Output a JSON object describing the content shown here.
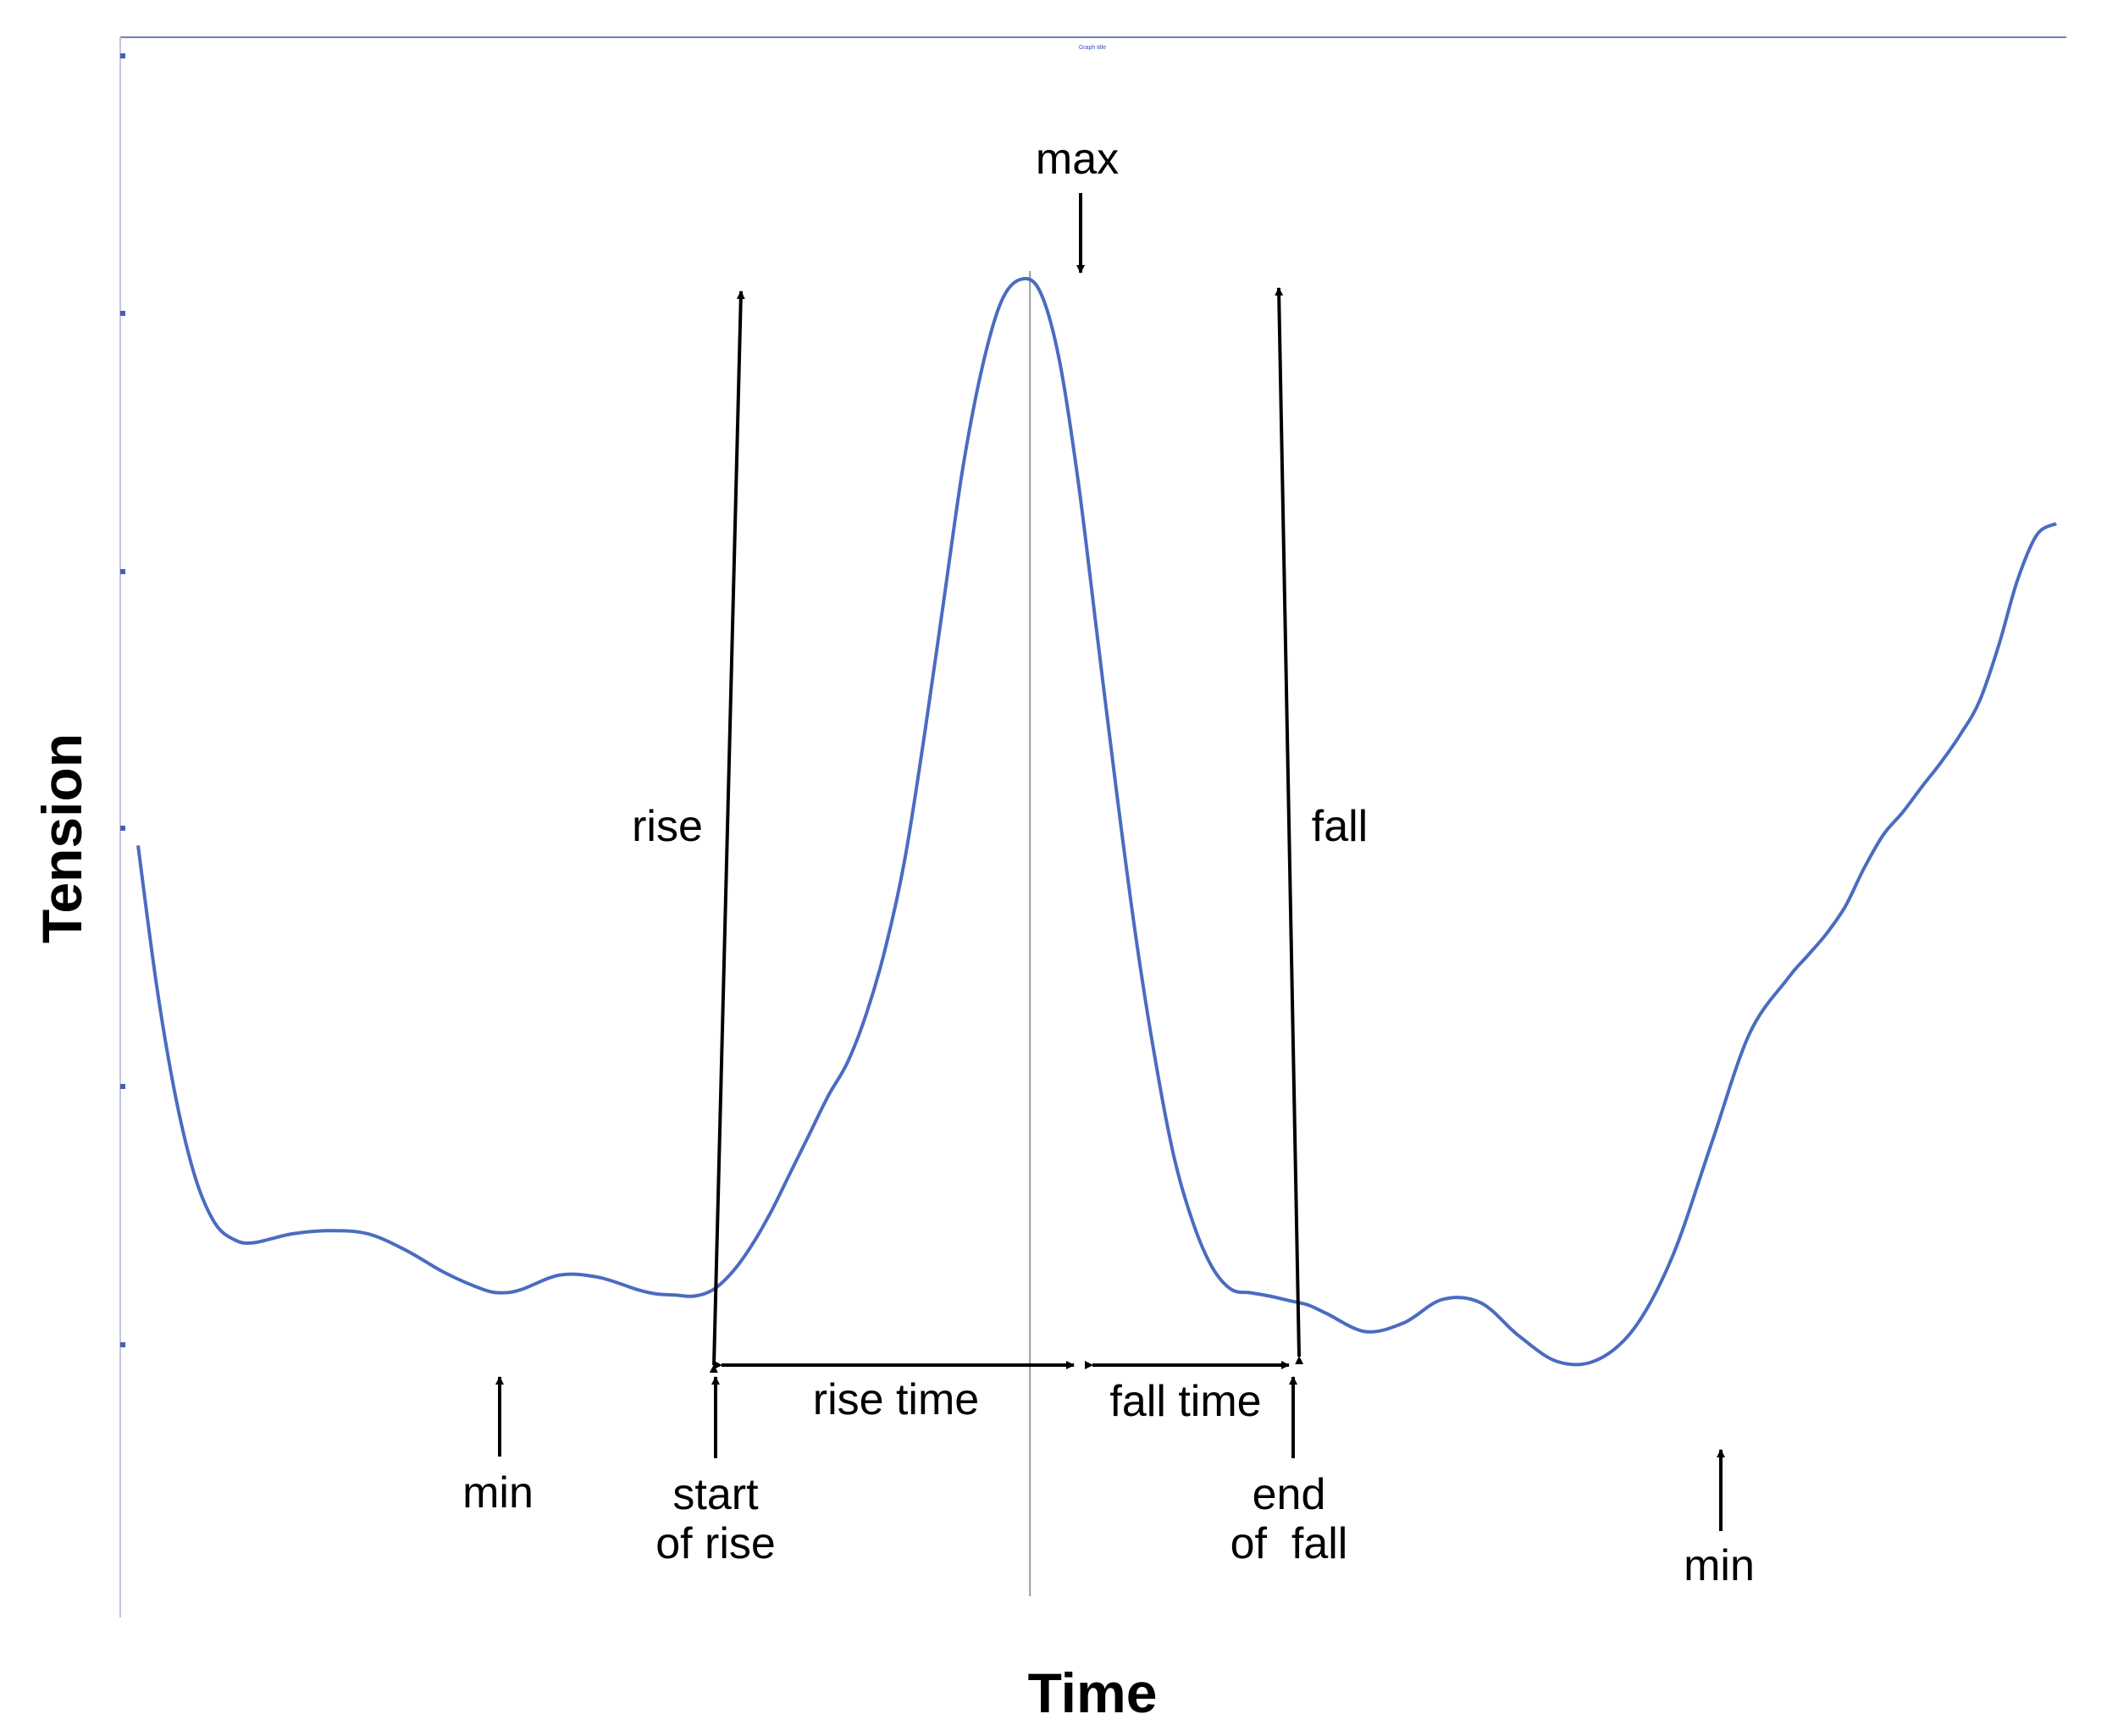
{
  "chart_data": {
    "type": "line",
    "xlabel": "Time",
    "ylabel": "Tension",
    "x_tick_labels_shown": false,
    "y_tick_labels_shown": false,
    "grid": false,
    "legend": "none",
    "series_color": "#4a6cc0",
    "annotation_color": "#000000",
    "series": [
      {
        "values_shape": "relative tension trace (x: 0-100 time, y: 0-100 relative tension)",
        "x": [
          0,
          1,
          2,
          3,
          4,
          5,
          6,
          8,
          10,
          12,
          14,
          16,
          18,
          19,
          20,
          22,
          24,
          26,
          27,
          28,
          29,
          30,
          31,
          32,
          33,
          34,
          35,
          36,
          37,
          38,
          39,
          40,
          41,
          42,
          43,
          44,
          45,
          46,
          47,
          48,
          49,
          50,
          51,
          52,
          53,
          54,
          55,
          56,
          57,
          58,
          59,
          60,
          61,
          62,
          64,
          66,
          68,
          70,
          72,
          74,
          76,
          78,
          80,
          82,
          84,
          86,
          87,
          88,
          89,
          90,
          91,
          92,
          93,
          94,
          95,
          96,
          97,
          98,
          99,
          100
        ],
        "y": [
          43,
          30,
          20,
          13,
          9,
          7.5,
          7.2,
          8,
          8.3,
          8,
          6.5,
          4.5,
          3,
          2.7,
          3,
          4.3,
          4.1,
          3,
          2.6,
          2.5,
          2.4,
          3,
          4.6,
          7,
          10,
          13.5,
          17,
          20.5,
          23.5,
          28,
          34,
          42,
          53,
          65,
          77,
          86,
          92,
          94,
          93,
          87,
          76,
          62,
          48,
          35,
          24,
          15,
          9,
          5,
          3,
          2.7,
          2.4,
          2,
          1.6,
          0.8,
          -0.8,
          0,
          2.1,
          1.8,
          -1.2,
          -3.5,
          -3.4,
          -0.5,
          6,
          16,
          26,
          31,
          33,
          35,
          37.5,
          41,
          44,
          46,
          48.3,
          50.5,
          53,
          56,
          61,
          67,
          71,
          72
        ]
      }
    ],
    "markers": {
      "start_of_rise_x": 30,
      "max_x": 46.5,
      "end_of_fall_x": 57,
      "min_left_x": 19,
      "min_right_x": 82
    },
    "annotations": {
      "max": "max",
      "rise": "rise",
      "fall": "fall",
      "rise_time": "rise time",
      "fall_time": "fall time",
      "min_left": "min",
      "min_right": "min",
      "start_of_rise": [
        "start",
        "of rise"
      ],
      "end_of_fall": [
        "end",
        "of  fall"
      ]
    },
    "top_tiny_label": "Graph title"
  }
}
